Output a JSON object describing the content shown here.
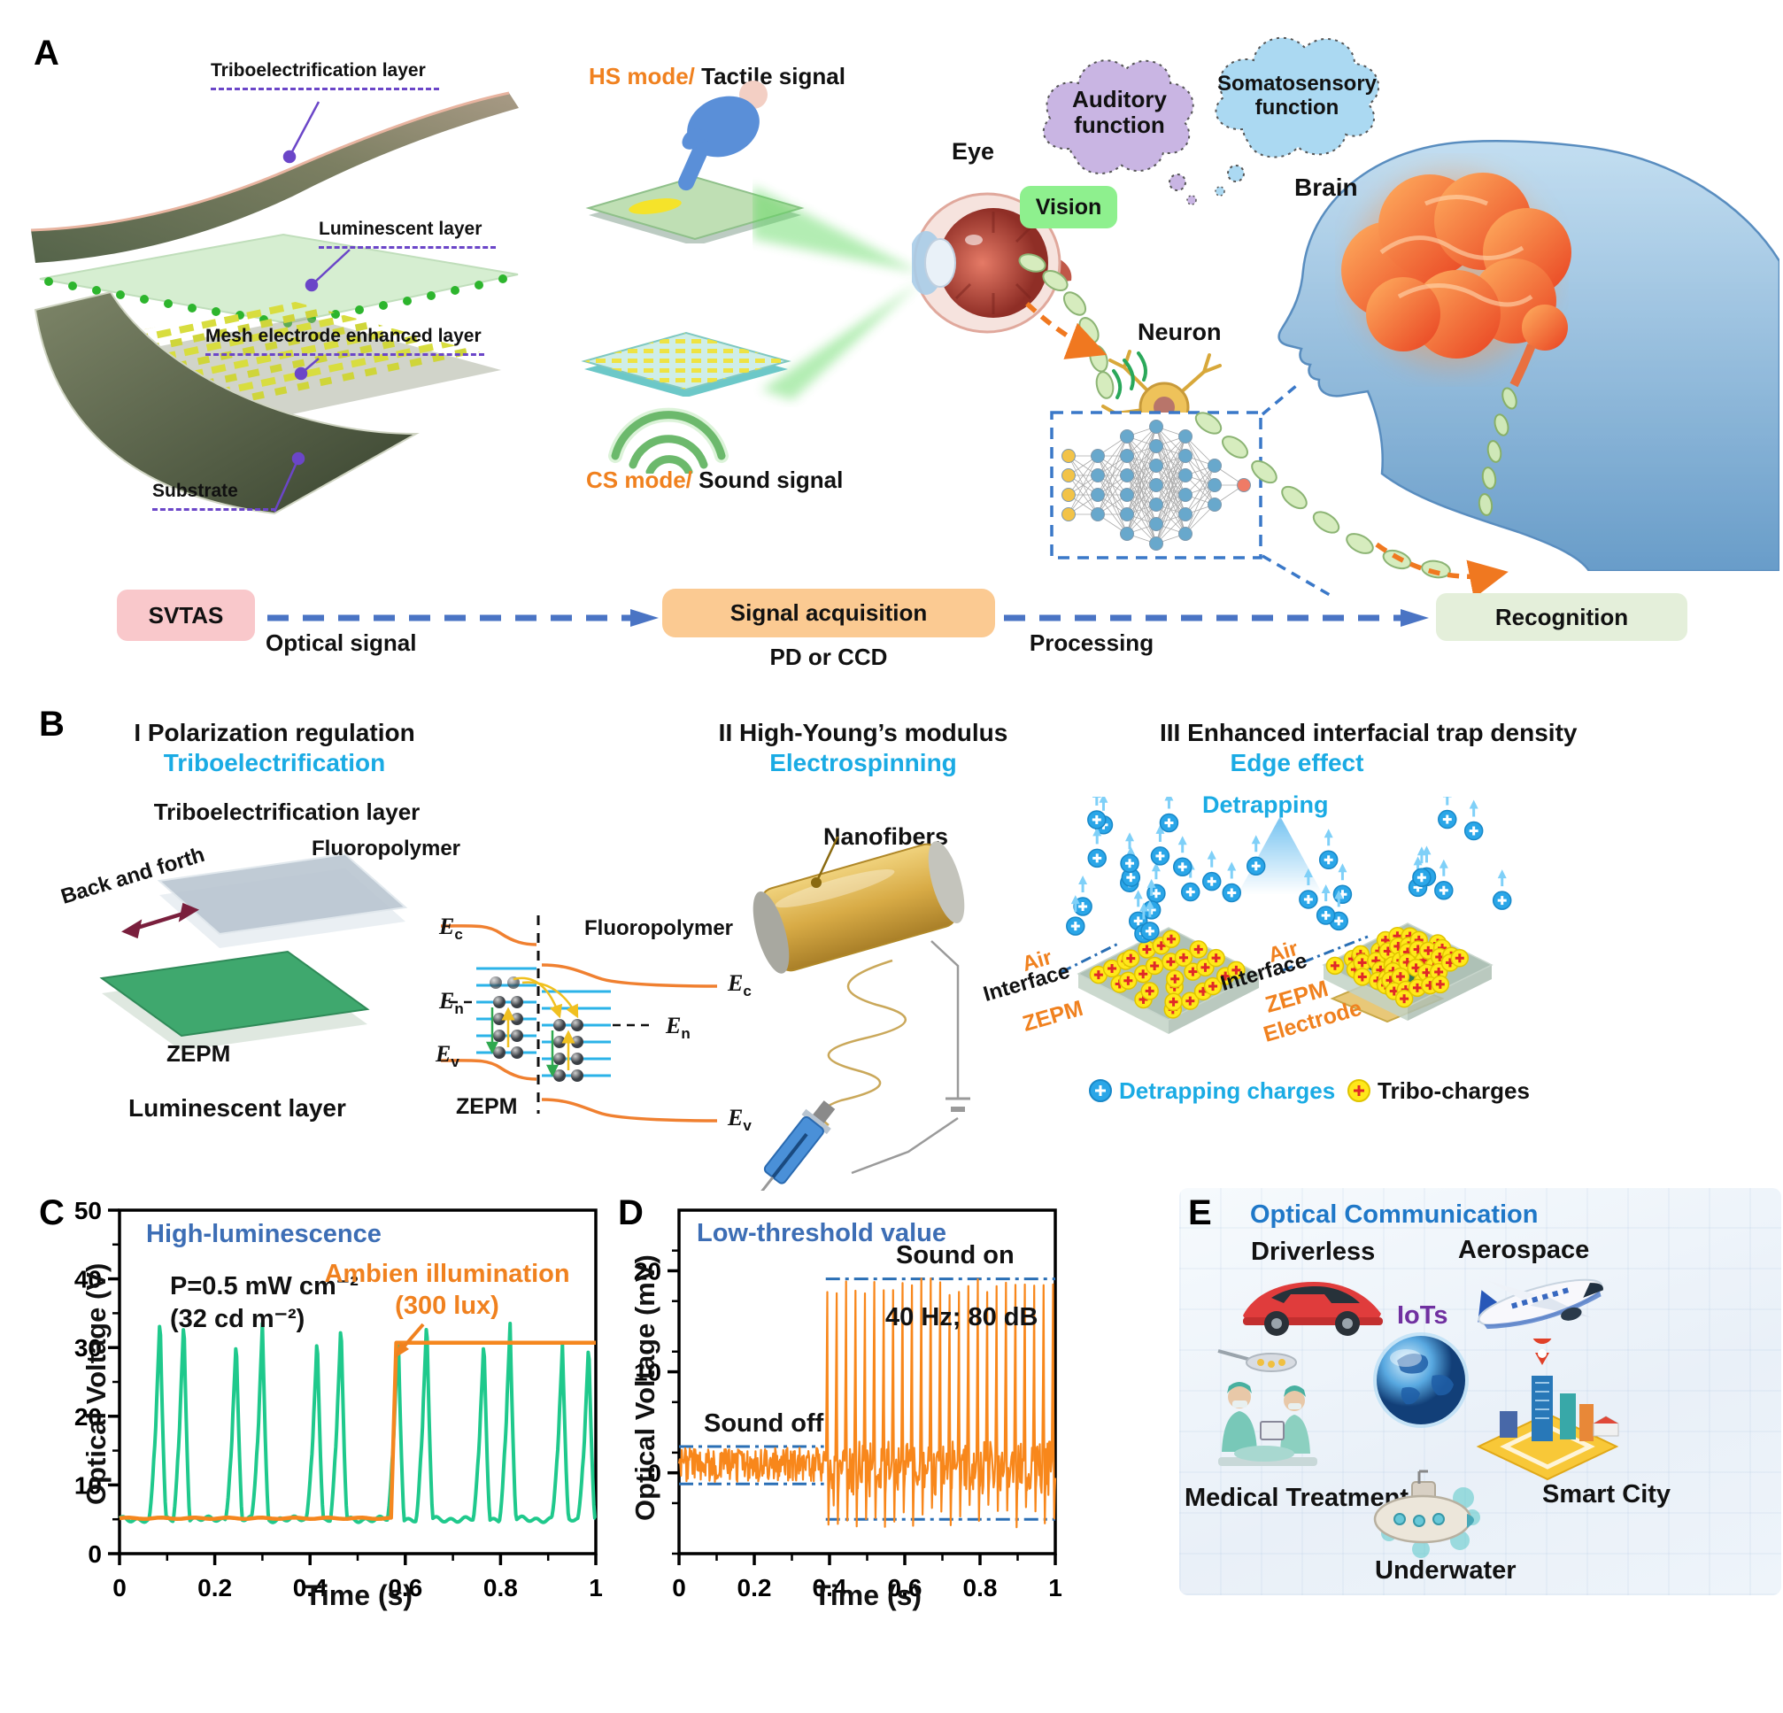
{
  "panel_a": {
    "label": "A",
    "device": {
      "layer1": "Triboelectrification layer",
      "layer2": "Luminescent layer",
      "layer3": "Mesh electrode enhanced layer",
      "layer4": "Substrate"
    },
    "hs_mode": "HS mode/",
    "hs_signal": " Tactile signal",
    "cs_mode": "CS mode/",
    "cs_signal": " Sound signal",
    "eye": "Eye",
    "vision": "Vision",
    "neuron": "Neuron",
    "brain": "Brain",
    "auditory_line1": "Auditory",
    "auditory_line2": "function",
    "somato_line1": "Somatosensory",
    "somato_line2": "function",
    "nn_layers": [
      4,
      4,
      6,
      7,
      6,
      3,
      1
    ],
    "flow": {
      "svtas": "SVTAS",
      "optical_signal": "Optical signal",
      "signal_acquisition": "Signal acquisition",
      "pd_ccd": "PD or CCD",
      "processing": "Processing",
      "recognition": "Recognition"
    }
  },
  "panel_b": {
    "label": "B",
    "sec1": {
      "title": "I Polarization regulation",
      "subtitle": "Triboelectrification",
      "layer_title": "Triboelectrification layer",
      "back_and_forth": "Back and forth",
      "fluoropolymer": "Fluoropolymer",
      "zepm": "ZEPM",
      "luminescent": "Luminescent layer"
    },
    "band": {
      "e": "E",
      "sub_c": "c",
      "sub_n": "n",
      "sub_v": "v",
      "fluoropolymer": "Fluoropolymer",
      "zepm": "ZEPM"
    },
    "sec2": {
      "title": "II High-Young’s modulus",
      "subtitle": "Electrospinning",
      "nanofibers": "Nanofibers"
    },
    "sec3": {
      "title": "III Enhanced interfacial trap density",
      "subtitle": "Edge effect",
      "detrapping": "Detrapping",
      "air": "Air",
      "interface": "Interface",
      "zepm": "ZEPM",
      "electrode": "Electrode",
      "legend_detrapping": "Detrapping charges",
      "legend_tribo": "Tribo-charges",
      "left_slab": {
        "tribo_count": 28,
        "detrap_count": 20
      },
      "right_slab": {
        "tribo_count": 46,
        "detrap_count": 12
      }
    }
  },
  "chart_data": [
    {
      "id": "c",
      "type": "line",
      "panel_label": "C",
      "xlabel": "Time (s)",
      "ylabel": "Optical Voltage (V)",
      "xlim": [
        0,
        1
      ],
      "ylim": [
        0,
        50
      ],
      "xticks": [
        0,
        0.2,
        0.4,
        0.6,
        0.8,
        1
      ],
      "xtick_labels": [
        "0",
        "0.2",
        "0.4",
        "0.6",
        "0.8",
        "1"
      ],
      "yticks": [
        0,
        10,
        20,
        30,
        40,
        50
      ],
      "grid": false,
      "annotations": {
        "headline": "High-luminescence",
        "power_line1": "P=0.5 mW cm⁻²",
        "power_line2": "(32 cd m⁻²)",
        "ambient_line1": "Ambien illumination",
        "ambient_line2": "(300 lux)"
      },
      "series": [
        {
          "name": "luminescence_pulses",
          "color": "#1fc98c",
          "baseline": 5,
          "peaks": [
            {
              "t": 0.085,
              "v": 35.0
            },
            {
              "t": 0.135,
              "v": 34.5
            },
            {
              "t": 0.245,
              "v": 31.5
            },
            {
              "t": 0.3,
              "v": 33.5
            },
            {
              "t": 0.415,
              "v": 32.0
            },
            {
              "t": 0.465,
              "v": 34.0
            },
            {
              "t": 0.585,
              "v": 32.5
            },
            {
              "t": 0.645,
              "v": 34.5
            },
            {
              "t": 0.765,
              "v": 31.5
            },
            {
              "t": 0.82,
              "v": 33.5
            },
            {
              "t": 0.93,
              "v": 30.5
            },
            {
              "t": 0.985,
              "v": 31.0
            }
          ]
        },
        {
          "name": "ambient_illumination",
          "color": "#f5871f",
          "step_time": 0.575,
          "low": 5.15,
          "high": 30.7
        }
      ]
    },
    {
      "id": "d",
      "type": "line",
      "panel_label": "D",
      "xlabel": "Time (s)",
      "ylabel": "Optical Voltage (mV)",
      "xlim": [
        0,
        1
      ],
      "ylim": [
        -8,
        26
      ],
      "xticks": [
        0,
        0.2,
        0.4,
        0.6,
        0.8,
        1
      ],
      "xtick_labels": [
        "0",
        "0.2",
        "0.4",
        "0.6",
        "0.8",
        "1"
      ],
      "yticks": [
        0,
        10,
        20
      ],
      "grid": false,
      "annotations": {
        "headline": "Low-threshold value",
        "sound_on": "Sound on",
        "sound_off": "Sound off",
        "stimulus": "40 Hz; 80 dB"
      },
      "series": [
        {
          "name": "acoustic_response",
          "color": "#f8871b",
          "noise_mean": 0.8,
          "noise_amp": 1.7,
          "sound_start": 0.39,
          "spike_period": 0.025,
          "spike_peak_range": [
            17.5,
            19.5
          ],
          "spike_trough_range": [
            -5.5,
            -3.0
          ]
        }
      ],
      "thresholds": {
        "color": "#2a6fb5",
        "off_upper": 2.6,
        "off_lower": -1.1,
        "off_range": [
          0,
          0.385
        ],
        "on_upper": 19.2,
        "on_lower": -4.6,
        "on_range": [
          0.39,
          1.0
        ]
      }
    }
  ],
  "panel_e": {
    "label": "E",
    "title": "Optical Communication",
    "driverless": "Driverless",
    "aerospace": "Aerospace",
    "iots": "IoTs",
    "medical": "Medical Treatment",
    "underwater": "Underwater",
    "smart_city": "Smart City"
  }
}
